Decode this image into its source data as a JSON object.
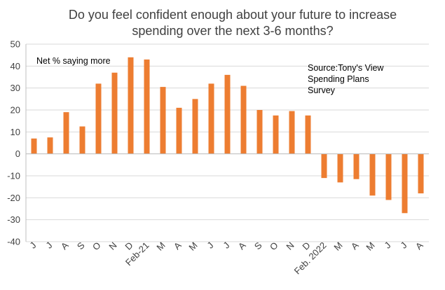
{
  "chart_data": {
    "type": "bar",
    "title_lines": [
      "Do you feel confident enough about your future to increase",
      "spending over the next 3-6 months?"
    ],
    "xlabel": "",
    "ylabel": "",
    "ylim": [
      -40,
      50
    ],
    "yticks": [
      50,
      40,
      30,
      20,
      10,
      0,
      -10,
      -20,
      -30,
      -40
    ],
    "grid": true,
    "categories": [
      "J",
      "J",
      "A",
      "S",
      "O",
      "N",
      "D",
      "Feb-21",
      "M",
      "A",
      "M",
      "J",
      "J",
      "A",
      "S",
      "O",
      "N",
      "D",
      "Feb. 2022",
      "M",
      "A",
      "M",
      "J",
      "J",
      "A"
    ],
    "x_tick_labels": [
      "J",
      "J",
      "A",
      "S",
      "O",
      "N",
      "D",
      "Feb-21",
      "M",
      "A",
      "M",
      "J",
      "J",
      "A",
      "S",
      "O",
      "N",
      "D",
      "Feb. 2022",
      "M",
      "A",
      "M",
      "J",
      "J",
      "A"
    ],
    "series": [
      {
        "values": [
          7,
          7.5,
          19,
          12.5,
          32,
          37,
          44,
          43,
          30.5,
          21,
          25,
          32,
          36,
          31,
          20,
          17.5,
          19.5,
          17.5,
          -11,
          -13,
          -11.5,
          -19,
          -21,
          -27,
          -18
        ]
      }
    ],
    "annotations": {
      "series_note": "Net % saying more",
      "source_lines": [
        "Source:Tony's View",
        "Spending Plans",
        "Survey"
      ]
    },
    "colors": {
      "bar": "#ED7D31",
      "grid": "#D9D9D9",
      "axis": "#BFBFBF",
      "text": "#404040"
    }
  }
}
